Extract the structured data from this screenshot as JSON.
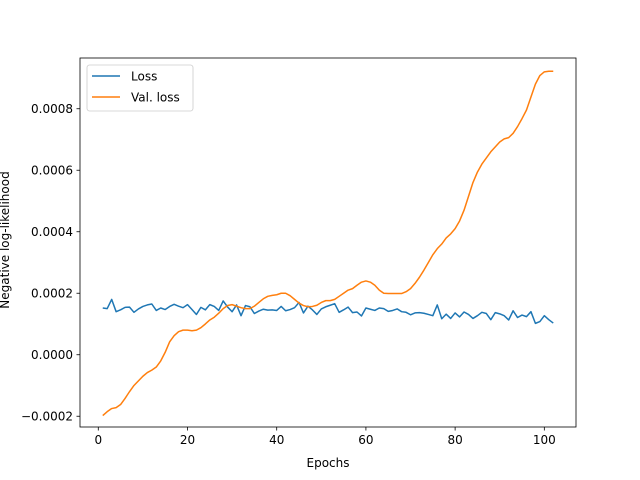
{
  "chart_data": {
    "type": "line",
    "xlabel": "Epochs",
    "ylabel": "Negative log-likelihood",
    "xlim": [
      -4.1,
      107.1
    ],
    "ylim": [
      -0.000235,
      0.000965
    ],
    "xticks": [
      0,
      20,
      40,
      60,
      80,
      100
    ],
    "xtick_labels": [
      "0",
      "20",
      "40",
      "60",
      "80",
      "100"
    ],
    "yticks": [
      -0.0002,
      0.0,
      0.0002,
      0.0004,
      0.0006,
      0.0008
    ],
    "ytick_labels": [
      "−0.0002",
      "0.0000",
      "0.0002",
      "0.0004",
      "0.0006",
      "0.0008"
    ],
    "grid": false,
    "legend": "upper left",
    "series": [
      {
        "name": "Loss",
        "color": "#1f77b4",
        "x": [
          1,
          2,
          3,
          4,
          5,
          6,
          7,
          8,
          9,
          10,
          11,
          12,
          13,
          14,
          15,
          16,
          17,
          18,
          19,
          20,
          21,
          22,
          23,
          24,
          25,
          26,
          27,
          28,
          29,
          30,
          31,
          32,
          33,
          34,
          35,
          36,
          37,
          38,
          39,
          40,
          41,
          42,
          43,
          44,
          45,
          46,
          47,
          48,
          49,
          50,
          51,
          52,
          53,
          54,
          55,
          56,
          57,
          58,
          59,
          60,
          61,
          62,
          63,
          64,
          65,
          66,
          67,
          68,
          69,
          70,
          71,
          72,
          73,
          74,
          75,
          76,
          77,
          78,
          79,
          80,
          81,
          82,
          83,
          84,
          85,
          86,
          87,
          88,
          89,
          90,
          91,
          92,
          93,
          94,
          95,
          96,
          97,
          98,
          99,
          100,
          101,
          102
        ],
        "values": [
          0.000152,
          0.00015,
          0.00018,
          0.00014,
          0.000146,
          0.000154,
          0.000155,
          0.000138,
          0.000149,
          0.000157,
          0.000162,
          0.000165,
          0.000144,
          0.000152,
          0.000147,
          0.000157,
          0.000164,
          0.000158,
          0.000153,
          0.000163,
          0.000147,
          0.000131,
          0.000154,
          0.000146,
          0.000163,
          0.000157,
          0.000144,
          0.000175,
          0.000155,
          0.00014,
          0.000162,
          0.000127,
          0.00016,
          0.000156,
          0.000134,
          0.000142,
          0.000148,
          0.000145,
          0.000146,
          0.000144,
          0.000157,
          0.000143,
          0.000147,
          0.000153,
          0.00017,
          0.000136,
          0.000158,
          0.000146,
          0.000131,
          0.000149,
          0.000156,
          0.000161,
          0.000166,
          0.000138,
          0.000146,
          0.000155,
          0.000137,
          0.000139,
          0.000126,
          0.000152,
          0.000148,
          0.000144,
          0.000152,
          0.00015,
          0.000141,
          0.000144,
          0.000149,
          0.00014,
          0.000138,
          0.00013,
          0.000136,
          0.000137,
          0.000135,
          0.000131,
          0.000127,
          0.000162,
          0.000117,
          0.000132,
          0.000118,
          0.000136,
          0.000123,
          0.000139,
          0.000131,
          0.000118,
          0.000127,
          0.000138,
          0.000134,
          0.000114,
          0.000137,
          0.000133,
          0.000127,
          0.000113,
          0.000143,
          0.000121,
          0.000129,
          0.000124,
          0.00014,
          0.000102,
          0.000108,
          0.000127,
          0.000114,
          0.000103
        ]
      },
      {
        "name": "Val. loss",
        "color": "#ff7f0e",
        "x": [
          1,
          2,
          3,
          4,
          5,
          6,
          7,
          8,
          9,
          10,
          11,
          12,
          13,
          14,
          15,
          16,
          17,
          18,
          19,
          20,
          21,
          22,
          23,
          24,
          25,
          26,
          27,
          28,
          29,
          30,
          31,
          32,
          33,
          34,
          35,
          36,
          37,
          38,
          39,
          40,
          41,
          42,
          43,
          44,
          45,
          46,
          47,
          48,
          49,
          50,
          51,
          52,
          53,
          54,
          55,
          56,
          57,
          58,
          59,
          60,
          61,
          62,
          63,
          64,
          65,
          66,
          67,
          68,
          69,
          70,
          71,
          72,
          73,
          74,
          75,
          76,
          77,
          78,
          79,
          80,
          81,
          82,
          83,
          84,
          85,
          86,
          87,
          88,
          89,
          90,
          91,
          92,
          93,
          94,
          95,
          96,
          97,
          98,
          99,
          100,
          101,
          102
        ],
        "values": [
          -0.000198,
          -0.000185,
          -0.000175,
          -0.000172,
          -0.000162,
          -0.000142,
          -0.00012,
          -0.0001,
          -8.5e-05,
          -7e-05,
          -5.8e-05,
          -5e-05,
          -4e-05,
          -2e-05,
          8e-06,
          4.2e-05,
          6.2e-05,
          7.5e-05,
          8e-05,
          8e-05,
          7.8e-05,
          8e-05,
          8.8e-05,
          0.0001,
          0.000113,
          0.000122,
          0.000135,
          0.00015,
          0.00016,
          0.000163,
          0.000158,
          0.000153,
          0.00015,
          0.00015,
          0.000158,
          0.00017,
          0.000182,
          0.00019,
          0.000193,
          0.000195,
          0.0002,
          0.0002,
          0.000192,
          0.00018,
          0.000168,
          0.00016,
          0.000156,
          0.000157,
          0.000161,
          0.00017,
          0.000176,
          0.000176,
          0.00018,
          0.00019,
          0.0002,
          0.00021,
          0.000215,
          0.000226,
          0.000236,
          0.00024,
          0.000236,
          0.000226,
          0.00021,
          0.0002,
          0.000199,
          0.000199,
          0.000199,
          0.000199,
          0.000205,
          0.000215,
          0.000232,
          0.000252,
          0.000275,
          0.0003,
          0.000325,
          0.000345,
          0.00036,
          0.00038,
          0.000393,
          0.00041,
          0.000435,
          0.00047,
          0.000515,
          0.00056,
          0.000594,
          0.00062,
          0.00064,
          0.00066,
          0.000676,
          0.000692,
          0.000702,
          0.000706,
          0.00072,
          0.000742,
          0.000768,
          0.000796,
          0.000838,
          0.00088,
          0.000908,
          0.00092,
          0.000922,
          0.000922
        ]
      }
    ]
  }
}
